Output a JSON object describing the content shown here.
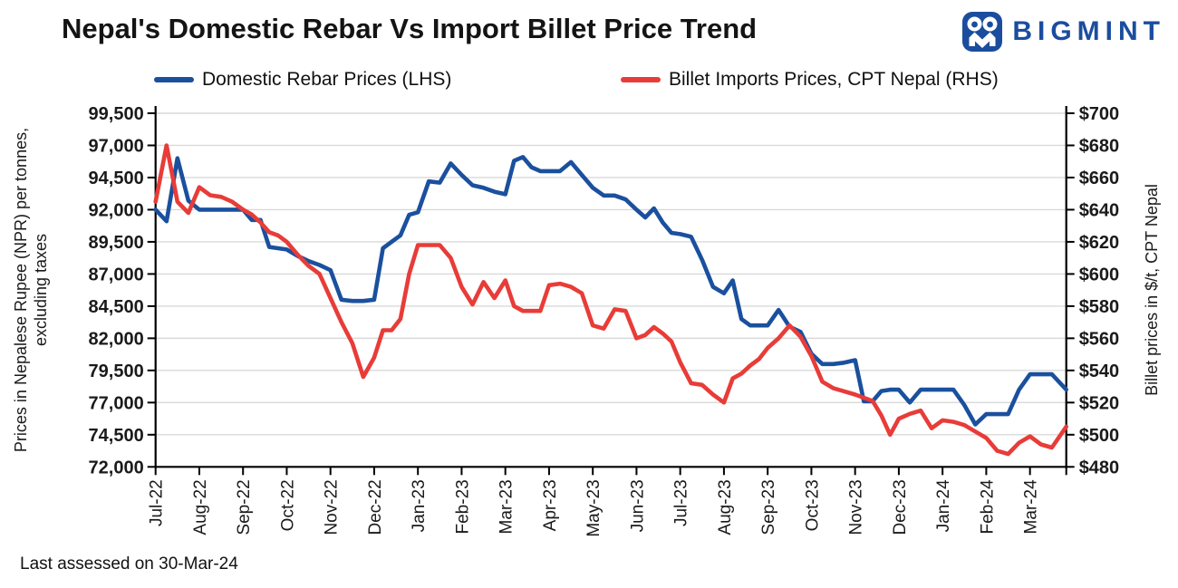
{
  "title": "Nepal's Domestic Rebar Vs Import Billet Price Trend",
  "logo": {
    "text": "BIGMINT",
    "color": "#1b4d9e"
  },
  "legend": [
    {
      "label": "Domestic Rebar Prices (LHS)",
      "color": "#1a509e"
    },
    {
      "label": "Billet Imports Prices, CPT Nepal (RHS)",
      "color": "#e83c38"
    }
  ],
  "footer": "Last assessed on 30-Mar-24",
  "chart_data": {
    "type": "line",
    "title": "Nepal's Domestic Rebar Vs Import Billet Price Trend",
    "grid": "horizontal",
    "legend_position": "top",
    "left_axis": {
      "title_line1": "Prices in Nepalese Rupee (NPR) per tonnes,",
      "title_line2": "excluding taxes",
      "min": 72000,
      "max": 99500,
      "step": 2500,
      "tick_labels": [
        "72,000",
        "74,500",
        "77,000",
        "79,500",
        "82,000",
        "84,500",
        "87,000",
        "89,500",
        "92,000",
        "94,500",
        "97,000",
        "99,500"
      ]
    },
    "right_axis": {
      "title": "Billet prices in $/t, CPT Nepal",
      "min": 480,
      "max": 700,
      "step": 20,
      "tick_labels": [
        "$480",
        "$500",
        "$520",
        "$540",
        "$560",
        "$580",
        "$600",
        "$620",
        "$640",
        "$660",
        "$680",
        "$700"
      ]
    },
    "x_axis": {
      "tick_labels": [
        "Jul-22",
        "Aug-22",
        "Sep-22",
        "Oct-22",
        "Nov-22",
        "Dec-22",
        "Jan-23",
        "Feb-23",
        "Mar-23",
        "Apr-23",
        "May-23",
        "Jun-23",
        "Jul-23",
        "Aug-23",
        "Sep-23",
        "Oct-23",
        "Nov-23",
        "Dec-23",
        "Jan-24",
        "Feb-24",
        "Mar-24"
      ],
      "points_per_month": [
        4,
        4,
        5,
        4,
        4,
        5,
        4,
        4,
        5,
        4,
        4,
        5,
        4,
        5,
        4,
        4,
        5,
        4,
        4,
        4,
        4
      ]
    },
    "series": [
      {
        "name": "Domestic Rebar Prices (LHS)",
        "axis": "left",
        "color": "#1a509e",
        "values": [
          92000,
          91100,
          96000,
          92700,
          92000,
          92000,
          92000,
          92000,
          92000,
          91200,
          91200,
          89100,
          89000,
          88900,
          88400,
          88000,
          87700,
          87300,
          85000,
          84900,
          84900,
          85000,
          89000,
          89500,
          90000,
          91600,
          91800,
          94200,
          94100,
          95600,
          94700,
          93900,
          93700,
          93400,
          93200,
          95800,
          96100,
          95300,
          95000,
          95000,
          95000,
          95700,
          94700,
          93700,
          93100,
          93100,
          92800,
          92000,
          91400,
          92100,
          91000,
          90200,
          90100,
          89900,
          88100,
          86000,
          85500,
          86500,
          83500,
          83000,
          83000,
          83000,
          84200,
          82900,
          82500,
          80800,
          80000,
          80000,
          80100,
          80300,
          77100,
          77100,
          77900,
          78000,
          78000,
          77000,
          78000,
          78000,
          78000,
          78000,
          76800,
          75300,
          76100,
          76100,
          76100,
          78000,
          79200,
          79200,
          79200,
          78000
        ]
      },
      {
        "name": "Billet Imports Prices, CPT Nepal (RHS)",
        "axis": "right",
        "color": "#e83c38",
        "values": [
          645,
          680,
          645,
          638,
          654,
          649,
          648,
          645,
          640,
          637,
          632,
          626,
          624,
          620,
          612,
          605,
          600,
          585,
          570,
          557,
          536,
          548,
          565,
          565,
          572,
          600,
          618,
          618,
          618,
          610,
          592,
          581,
          595,
          585,
          596,
          580,
          577,
          577,
          577,
          593,
          594,
          592,
          588,
          568,
          566,
          578,
          577,
          560,
          562,
          567,
          563,
          558,
          545,
          532,
          531,
          525,
          520,
          535,
          538,
          543,
          547,
          554,
          560,
          568,
          561,
          549,
          533,
          529,
          527,
          525,
          523,
          521,
          512,
          500,
          510,
          513,
          515,
          504,
          509,
          508,
          506,
          502,
          498,
          490,
          488,
          495,
          499,
          494,
          492,
          505
        ]
      }
    ]
  }
}
